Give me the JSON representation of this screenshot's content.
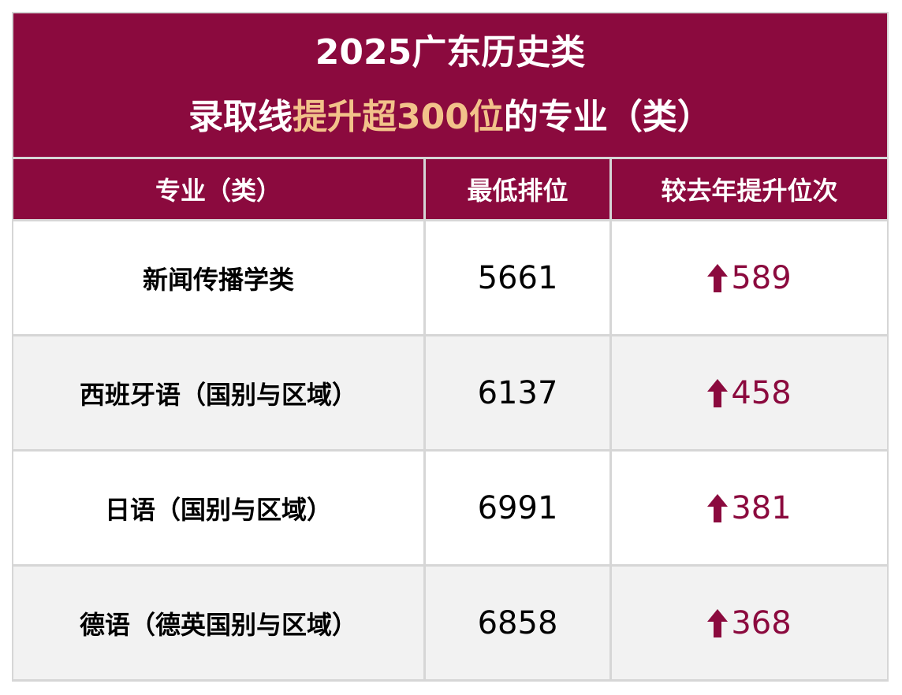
{
  "header": {
    "title_line1": "2025广东历史类",
    "title_line2": [
      "录取线",
      "提升超300位",
      "的专业（类）"
    ]
  },
  "table": {
    "columns": [
      "专业（类）",
      "最低排位",
      "较去年提升位次"
    ],
    "rows": [
      [
        "新闻传播学类",
        "5661",
        "589"
      ],
      [
        "西班牙语（国别与区域）",
        "6137",
        "458"
      ],
      [
        "日语（国别与区域）",
        "6991",
        "381"
      ],
      [
        "德语（德英国别与区域）",
        "6858",
        "368"
      ]
    ]
  }
}
